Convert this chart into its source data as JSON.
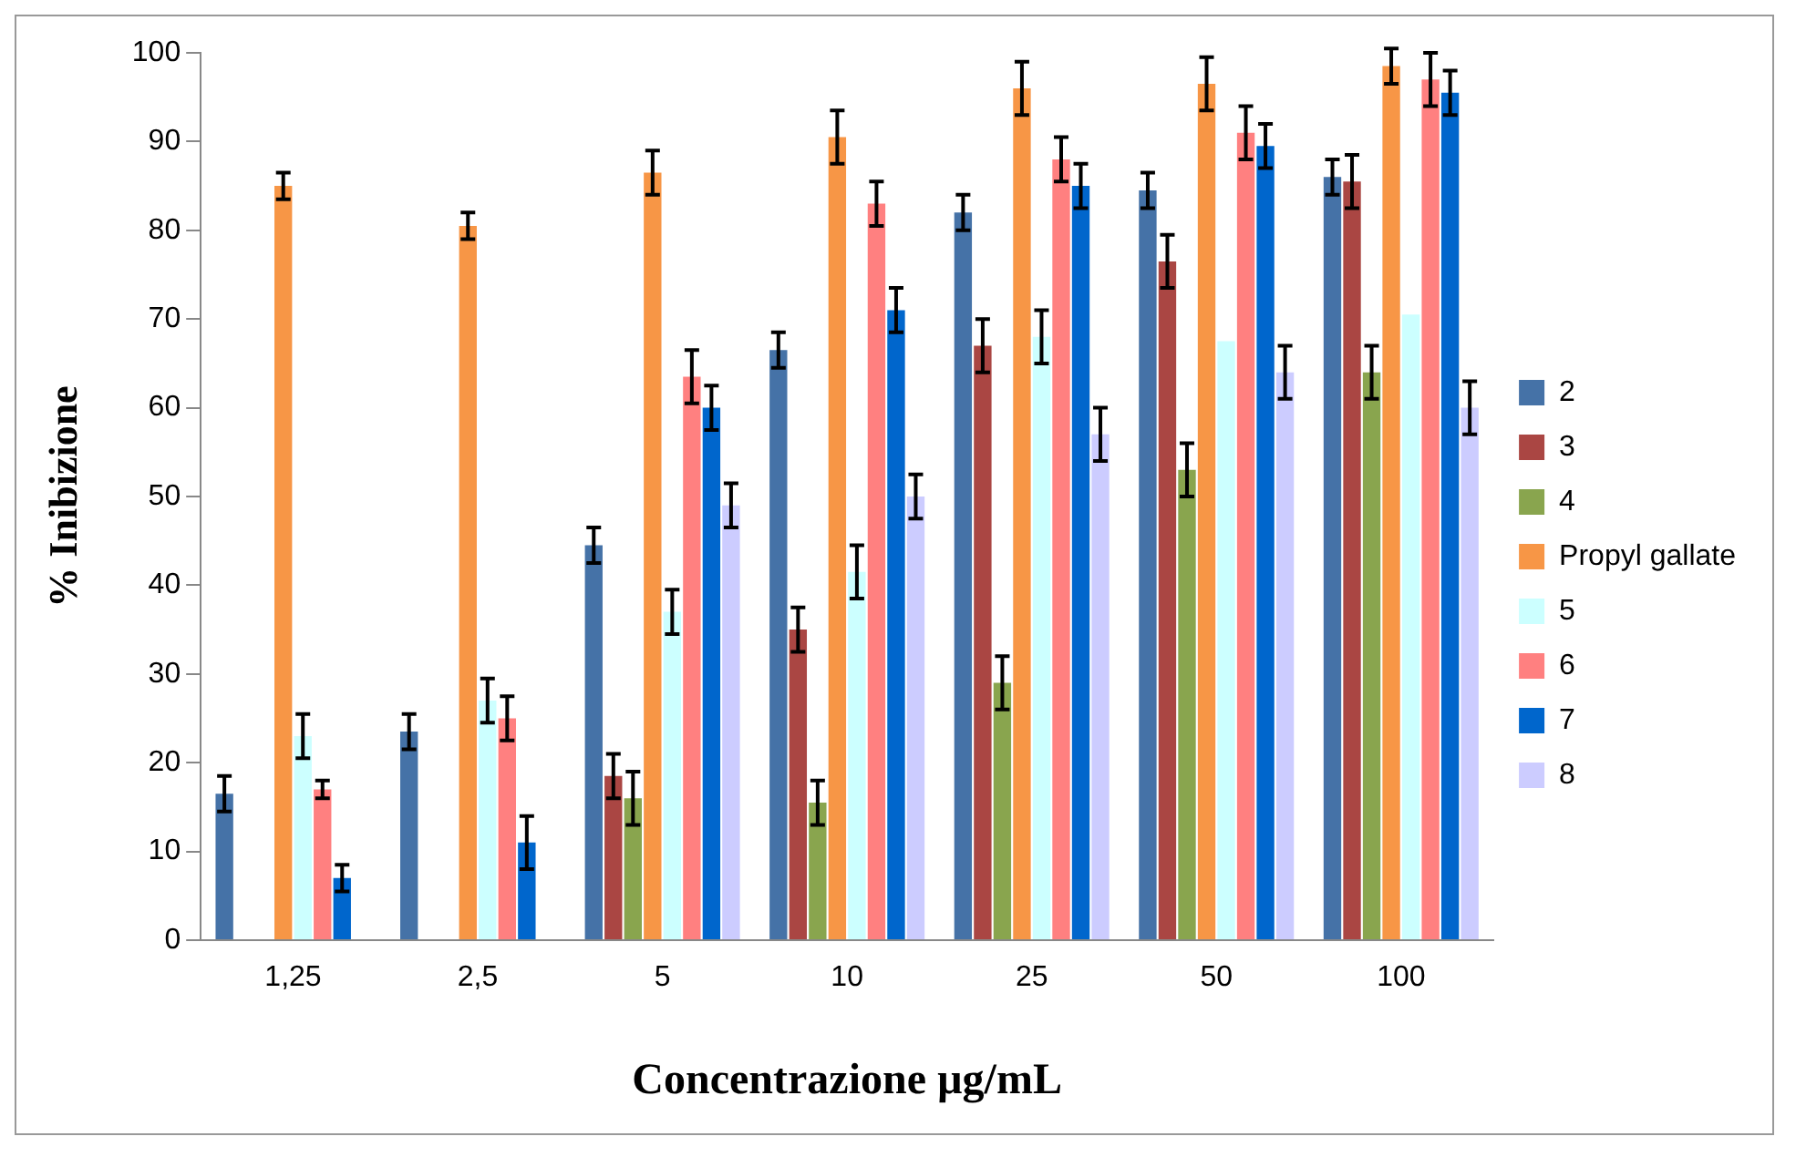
{
  "chart_data": {
    "type": "bar",
    "xlabel": "Concentrazione µg/mL",
    "ylabel": "% Inibizione",
    "categories": [
      "1,25",
      "2,5",
      "5",
      "10",
      "25",
      "50",
      "100"
    ],
    "ylim": [
      0,
      100
    ],
    "yticks": [
      0,
      10,
      20,
      30,
      40,
      50,
      60,
      70,
      80,
      90,
      100
    ],
    "grid": false,
    "legend": "right",
    "series": [
      {
        "name": "2",
        "color": "#4572a7",
        "values": [
          16.5,
          23.5,
          44.5,
          66.5,
          82,
          84.5,
          86
        ],
        "errors": [
          2,
          2,
          2,
          2,
          2,
          2,
          2
        ]
      },
      {
        "name": "3",
        "color": "#aa4643",
        "values": [
          null,
          null,
          18.5,
          35,
          67,
          76.5,
          85.5
        ],
        "errors": [
          null,
          null,
          2.5,
          2.5,
          3,
          3,
          3
        ]
      },
      {
        "name": "4",
        "color": "#89a54e",
        "values": [
          null,
          null,
          16,
          15.5,
          29,
          53,
          64
        ],
        "errors": [
          null,
          null,
          3,
          2.5,
          3,
          3,
          3
        ]
      },
      {
        "name": "Propyl gallate",
        "color": "#f79646",
        "values": [
          85,
          80.5,
          86.5,
          90.5,
          96,
          96.5,
          98.5
        ],
        "errors": [
          1.5,
          1.5,
          2.5,
          3,
          3,
          3,
          2
        ]
      },
      {
        "name": "5",
        "color": "#ccffff",
        "values": [
          23,
          27,
          37,
          41.5,
          68,
          67.5,
          70.5
        ],
        "errors": [
          2.5,
          2.5,
          2.5,
          3,
          3,
          null,
          null
        ]
      },
      {
        "name": "6",
        "color": "#ff8080",
        "values": [
          17,
          25,
          63.5,
          83,
          88,
          91,
          97
        ],
        "errors": [
          1,
          2.5,
          3,
          2.5,
          2.5,
          3,
          3
        ]
      },
      {
        "name": "7",
        "color": "#0066cc",
        "values": [
          7,
          11,
          60,
          71,
          85,
          89.5,
          95.5
        ],
        "errors": [
          1.5,
          3,
          2.5,
          2.5,
          2.5,
          2.5,
          2.5
        ]
      },
      {
        "name": "8",
        "color": "#ccccff",
        "values": [
          null,
          null,
          49,
          50,
          57,
          64,
          60
        ],
        "errors": [
          null,
          null,
          2.5,
          2.5,
          3,
          3,
          3
        ]
      }
    ]
  }
}
